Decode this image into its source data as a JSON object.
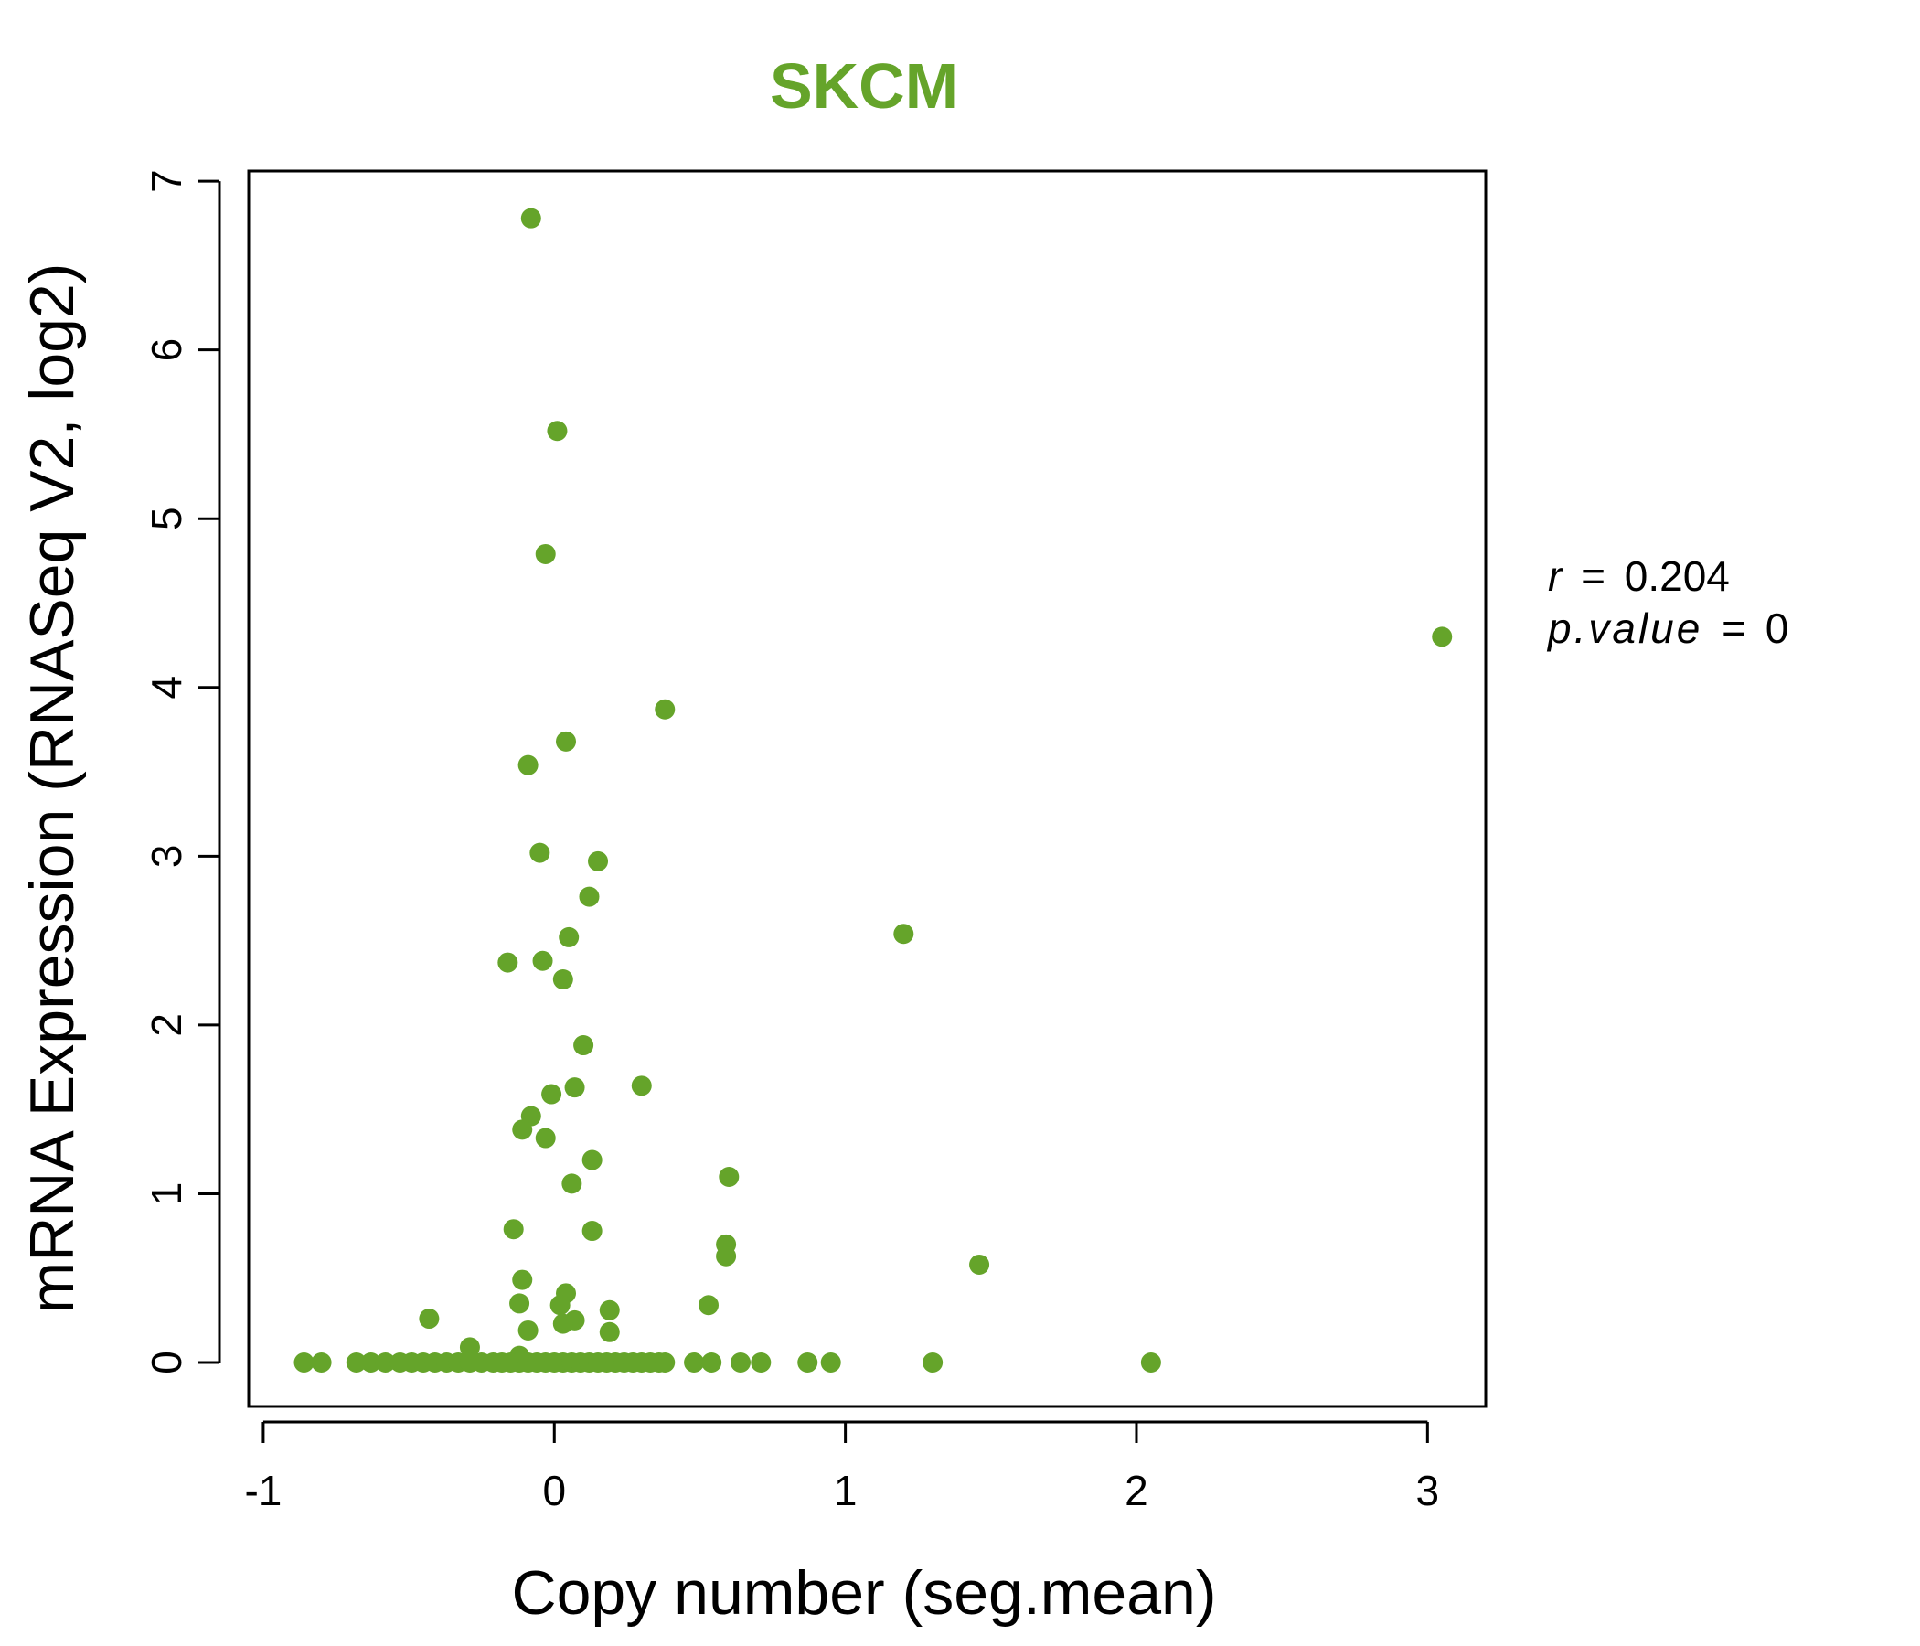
{
  "colors": {
    "accent": "#65a42a",
    "axis": "#000000"
  },
  "chart_data": {
    "type": "scatter",
    "title": "SKCM",
    "xlabel": "Copy number (seg.mean)",
    "ylabel": "mRNA Expression (RNASeq V2, log2)",
    "xlim": [
      -1.05,
      3.2
    ],
    "ylim": [
      -0.26,
      7.06
    ],
    "xticks": [
      -1,
      0,
      1,
      2,
      3
    ],
    "yticks": [
      0,
      1,
      2,
      3,
      4,
      5,
      6,
      7
    ],
    "xtick_labels": [
      "-1",
      "0",
      "1",
      "2",
      "3"
    ],
    "ytick_labels": [
      "0",
      "1",
      "2",
      "3",
      "4",
      "5",
      "6",
      "7"
    ],
    "annotation": {
      "r_label": "r",
      "r_value": "0.204",
      "p_label": "p.value",
      "p_value": "0"
    },
    "points": [
      [
        -0.08,
        6.78
      ],
      [
        0.01,
        5.52
      ],
      [
        -0.03,
        4.79
      ],
      [
        3.05,
        4.3
      ],
      [
        0.38,
        3.87
      ],
      [
        0.04,
        3.68
      ],
      [
        -0.09,
        3.54
      ],
      [
        -0.05,
        3.02
      ],
      [
        0.15,
        2.97
      ],
      [
        0.12,
        2.76
      ],
      [
        1.2,
        2.54
      ],
      [
        0.05,
        2.52
      ],
      [
        -0.16,
        2.37
      ],
      [
        -0.04,
        2.38
      ],
      [
        0.03,
        2.27
      ],
      [
        0.1,
        1.88
      ],
      [
        0.07,
        1.63
      ],
      [
        0.3,
        1.64
      ],
      [
        -0.01,
        1.59
      ],
      [
        -0.08,
        1.46
      ],
      [
        -0.11,
        1.38
      ],
      [
        -0.03,
        1.33
      ],
      [
        0.13,
        1.2
      ],
      [
        0.6,
        1.1
      ],
      [
        0.06,
        1.06
      ],
      [
        -0.14,
        0.79
      ],
      [
        0.13,
        0.78
      ],
      [
        0.59,
        0.7
      ],
      [
        0.59,
        0.63
      ],
      [
        1.46,
        0.58
      ],
      [
        -0.11,
        0.49
      ],
      [
        0.04,
        0.41
      ],
      [
        -0.12,
        0.35
      ],
      [
        0.02,
        0.34
      ],
      [
        0.53,
        0.34
      ],
      [
        0.19,
        0.31
      ],
      [
        -0.43,
        0.26
      ],
      [
        0.07,
        0.25
      ],
      [
        0.03,
        0.23
      ],
      [
        -0.09,
        0.19
      ],
      [
        0.19,
        0.18
      ],
      [
        -0.29,
        0.09
      ],
      [
        -0.12,
        0.04
      ],
      [
        -0.86,
        0
      ],
      [
        -0.8,
        0
      ],
      [
        -0.68,
        0
      ],
      [
        -0.63,
        0
      ],
      [
        -0.58,
        0
      ],
      [
        -0.53,
        0
      ],
      [
        -0.49,
        0
      ],
      [
        -0.45,
        0
      ],
      [
        -0.41,
        0
      ],
      [
        -0.37,
        0
      ],
      [
        -0.33,
        0
      ],
      [
        -0.29,
        0
      ],
      [
        -0.25,
        0
      ],
      [
        -0.21,
        0
      ],
      [
        -0.18,
        0
      ],
      [
        -0.15,
        0
      ],
      [
        -0.12,
        0
      ],
      [
        -0.09,
        0
      ],
      [
        -0.06,
        0
      ],
      [
        -0.03,
        0
      ],
      [
        0,
        0
      ],
      [
        0.03,
        0
      ],
      [
        0.06,
        0
      ],
      [
        0.09,
        0
      ],
      [
        0.12,
        0
      ],
      [
        0.15,
        0
      ],
      [
        0.18,
        0
      ],
      [
        0.21,
        0
      ],
      [
        0.24,
        0
      ],
      [
        0.27,
        0
      ],
      [
        0.3,
        0
      ],
      [
        0.33,
        0
      ],
      [
        0.36,
        0
      ],
      [
        0.38,
        0
      ],
      [
        0.48,
        0
      ],
      [
        0.54,
        0
      ],
      [
        0.64,
        0
      ],
      [
        0.71,
        0
      ],
      [
        0.87,
        0
      ],
      [
        0.95,
        0
      ],
      [
        1.3,
        0
      ],
      [
        2.05,
        0
      ]
    ]
  }
}
